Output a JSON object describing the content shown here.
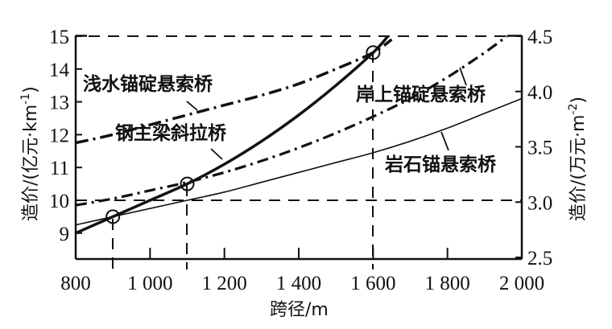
{
  "chart_data": {
    "type": "line",
    "title": "",
    "xlabel": "跨径/m",
    "ylabel_left": "造价/(亿元·km⁻¹)",
    "ylabel_right": "造价/(万元·m⁻²)",
    "xlim": [
      800,
      2000
    ],
    "ylim_left": [
      8.2,
      15
    ],
    "ylim_right": [
      2.5,
      4.5
    ],
    "x_ticks": [
      "800",
      "1 000",
      "1 200",
      "1 400",
      "1 600",
      "1 800",
      "2 000"
    ],
    "x_tick_values": [
      800,
      1000,
      1200,
      1400,
      1600,
      1800,
      2000
    ],
    "y_ticks_left": [
      "15",
      "14",
      "13",
      "12",
      "11",
      "10",
      "9"
    ],
    "y_tick_values_left": [
      15,
      14,
      13,
      12,
      11,
      10,
      9
    ],
    "y_ticks_right": [
      "4.5",
      "4.0",
      "3.5",
      "3.0",
      "2.5"
    ],
    "y_tick_values_right": [
      4.5,
      4.0,
      3.5,
      3.0,
      2.5
    ],
    "grid": false,
    "legend_position": "inline labels",
    "series": [
      {
        "name": "浅水锚碇悬索桥",
        "style": "dash-dot thick",
        "x": [
          800,
          900,
          1000,
          1100,
          1200,
          1300,
          1400,
          1500,
          1600,
          1650
        ],
        "y": [
          11.75,
          12.0,
          12.3,
          12.6,
          12.9,
          13.2,
          13.55,
          14.0,
          14.5,
          14.9
        ]
      },
      {
        "name": "钢主梁斜拉桥",
        "style": "solid thick",
        "x": [
          800,
          900,
          1000,
          1100,
          1200,
          1300,
          1400,
          1500,
          1600,
          1640
        ],
        "y": [
          9.0,
          9.5,
          10.0,
          10.5,
          11.1,
          11.8,
          12.6,
          13.5,
          14.5,
          15.0
        ]
      },
      {
        "name": "岸上锚碇悬索桥",
        "style": "dash-dot",
        "x": [
          800,
          900,
          1000,
          1100,
          1200,
          1300,
          1400,
          1500,
          1600,
          1700,
          1800,
          1900,
          1960
        ],
        "y": [
          9.85,
          10.05,
          10.3,
          10.55,
          10.85,
          11.2,
          11.6,
          12.05,
          12.55,
          13.1,
          13.75,
          14.5,
          15.0
        ]
      },
      {
        "name": "岩石锚悬索桥",
        "style": "solid thin",
        "x": [
          800,
          900,
          1000,
          1100,
          1200,
          1300,
          1400,
          1500,
          1600,
          1700,
          1800,
          1900,
          2000
        ],
        "y": [
          9.25,
          9.5,
          9.75,
          10.0,
          10.25,
          10.55,
          10.85,
          11.15,
          11.45,
          11.8,
          12.2,
          12.65,
          13.1
        ]
      }
    ],
    "annotations": {
      "circles": [
        {
          "x": 900,
          "y": 9.5
        },
        {
          "x": 1100,
          "y": 10.5
        },
        {
          "x": 1600,
          "y": 14.5
        }
      ],
      "reference_lines": [
        {
          "type": "vertical-dashed",
          "x": 900
        },
        {
          "type": "vertical-dashed",
          "x": 1100
        },
        {
          "type": "vertical-dashed",
          "x": 1600
        },
        {
          "type": "horizontal-dashed",
          "y": 15
        },
        {
          "type": "horizontal-dashed",
          "y": 10
        }
      ]
    }
  },
  "labels": {
    "xlabel": "跨径/m",
    "ylabel_left": "造价/(亿元·km",
    "ylabel_left_sup": "-1",
    "ylabel_right": "造价/(万元·m",
    "ylabel_right_sup": "-2",
    "series_0": "浅水锚碇悬索桥",
    "series_1": "钢主梁斜拉桥",
    "series_2": "岸上锚碇悬索桥",
    "series_3": "岩石锚悬索桥"
  },
  "x_ticks": [
    "800",
    "1 000",
    "1 200",
    "1 400",
    "1 600",
    "1 800",
    "2 000"
  ],
  "y_ticks_left": [
    "15",
    "14",
    "13",
    "12",
    "11",
    "10",
    "9"
  ],
  "y_ticks_right": [
    "4.5",
    "4.0",
    "3.5",
    "3.0",
    "2.5"
  ]
}
